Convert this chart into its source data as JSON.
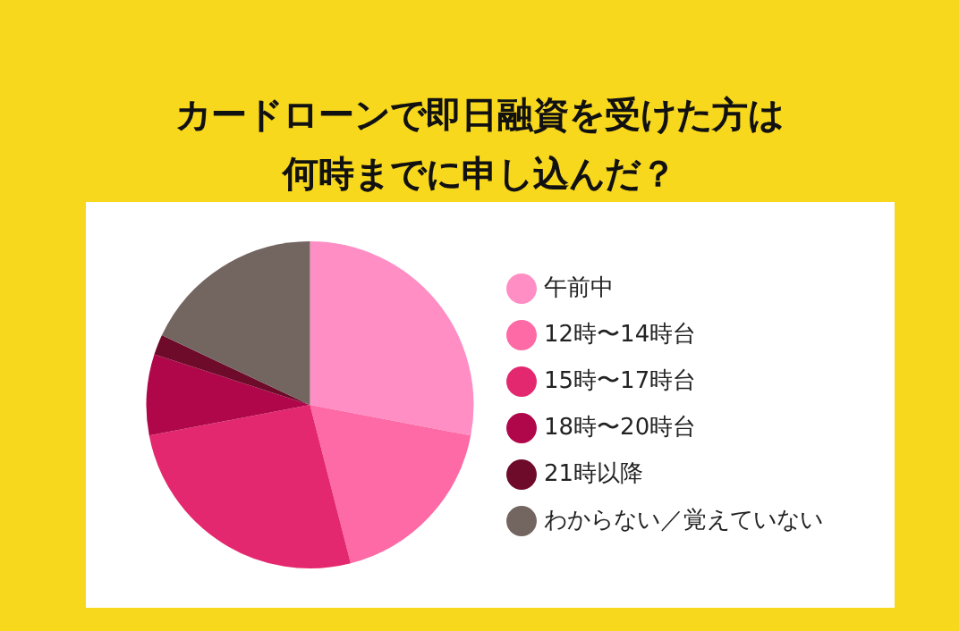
{
  "chart_data": {
    "type": "pie",
    "title": "カードローンで即日融資を受けた方は何時までに申し込んだ？",
    "categories": [
      "午前中",
      "12時〜14時台",
      "15時〜17時台",
      "18時〜20時台",
      "21時以降",
      "わからない／覚えていない"
    ],
    "values": [
      28,
      18,
      26,
      8,
      2,
      18
    ],
    "colors": [
      "#ff8ec4",
      "#fd6aa5",
      "#e4286f",
      "#b0074a",
      "#6e0a2a",
      "#736560"
    ],
    "legend": "right"
  }
}
